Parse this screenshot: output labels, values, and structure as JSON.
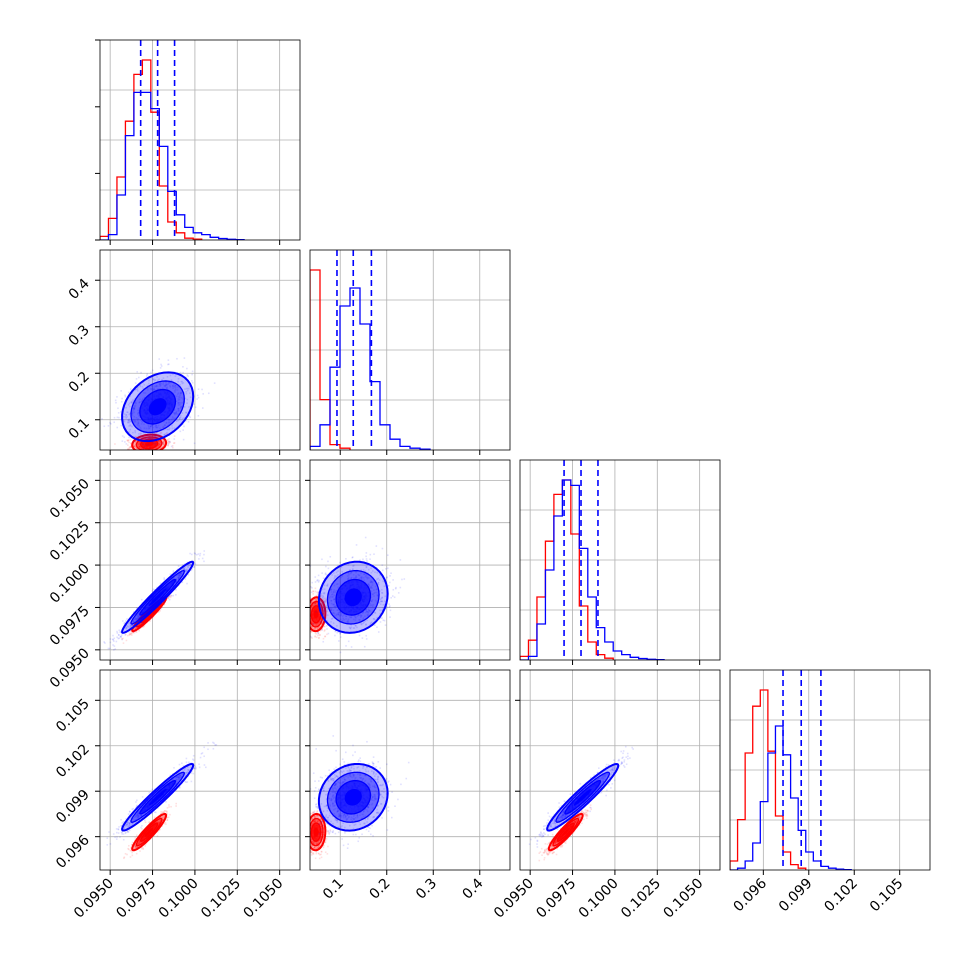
{
  "chart_data": {
    "type": "corner",
    "parameters": [
      {
        "ticks": [
          0.095,
          0.0975,
          0.1,
          0.1025,
          0.105
        ],
        "tick_labels": [
          "0.0950",
          "0.0975",
          "0.1000",
          "0.1025",
          "0.1050"
        ],
        "range": [
          0.0944,
          0.1062
        ]
      },
      {
        "ticks": [
          0.1,
          0.2,
          0.3,
          0.4
        ],
        "tick_labels": [
          "0.1",
          "0.2",
          "0.3",
          "0.4"
        ],
        "range": [
          0.035,
          0.465
        ]
      },
      {
        "ticks": [
          0.095,
          0.0975,
          0.1,
          0.1025,
          0.105
        ],
        "tick_labels": [
          "0.0950",
          "0.0975",
          "0.1000",
          "0.1025",
          "0.1050"
        ],
        "range": [
          0.0944,
          0.1062
        ]
      },
      {
        "ticks": [
          0.096,
          0.099,
          0.102,
          0.105
        ],
        "tick_labels": [
          "0.096",
          "0.099",
          "0.102",
          "0.105"
        ],
        "range": [
          0.0938,
          0.107
        ]
      }
    ],
    "series": [
      {
        "color": "#ff0000",
        "marginals": [
          {
            "edges_start": 0.0944,
            "bin_width": 0.0005,
            "counts": [
              0.02,
              0.12,
              0.35,
              0.66,
              0.92,
              1.0,
              0.71,
              0.3,
              0.1,
              0.04,
              0.01,
              0.005
            ]
          },
          {
            "edges_start": 0.035,
            "bin_width": 0.0215,
            "counts": [
              1.0,
              0.28,
              0.03,
              0.01
            ]
          },
          {
            "edges_start": 0.0944,
            "bin_width": 0.0005,
            "counts": [
              0.02,
              0.11,
              0.35,
              0.66,
              0.92,
              1.0,
              0.7,
              0.3,
              0.1,
              0.03,
              0.01
            ]
          },
          {
            "edges_start": 0.0938,
            "bin_width": 0.0005,
            "counts": [
              0.05,
              0.28,
              0.65,
              0.91,
              1.0,
              0.66,
              0.3,
              0.1,
              0.03,
              0.01
            ]
          }
        ],
        "means": [
          0.0973,
          0.048,
          0.0971,
          0.0963
        ],
        "sigmas": [
          0.0005,
          0.01,
          0.0005,
          0.0006
        ],
        "tilts": [
          [
            1,
            0,
            0,
            0
          ],
          [
            0.12,
            1,
            0,
            0
          ],
          [
            0.95,
            0.05,
            1,
            0
          ],
          [
            0.92,
            0.05,
            0.92,
            1
          ]
        ]
      },
      {
        "color": "#0000ff",
        "marginals": [
          {
            "edges_start": 0.0944,
            "bin_width": 0.0005,
            "counts": [
              0.0,
              0.03,
              0.25,
              0.58,
              0.82,
              0.82,
              0.73,
              0.52,
              0.27,
              0.14,
              0.07,
              0.04,
              0.03,
              0.015,
              0.008,
              0.004,
              0.002
            ]
          },
          {
            "edges_start": 0.035,
            "bin_width": 0.0215,
            "counts": [
              0.02,
              0.14,
              0.46,
              0.8,
              0.9,
              0.7,
              0.38,
              0.14,
              0.06,
              0.02,
              0.01,
              0.005
            ]
          },
          {
            "edges_start": 0.0944,
            "bin_width": 0.0005,
            "counts": [
              0.0,
              0.02,
              0.2,
              0.5,
              0.8,
              1.0,
              0.97,
              0.62,
              0.35,
              0.18,
              0.1,
              0.05,
              0.03,
              0.015,
              0.008,
              0.004,
              0.002
            ]
          },
          {
            "edges_start": 0.0938,
            "bin_width": 0.0005,
            "counts": [
              0.0,
              0.01,
              0.05,
              0.15,
              0.38,
              0.65,
              0.8,
              0.64,
              0.4,
              0.22,
              0.1,
              0.05,
              0.02,
              0.01,
              0.005,
              0.002
            ]
          }
        ],
        "means": [
          0.0978,
          0.128,
          0.0981,
          0.0986
        ],
        "sigmas": [
          0.00105,
          0.037,
          0.00105,
          0.0011
        ],
        "tilts": [
          [
            1,
            0,
            0,
            0
          ],
          [
            0.3,
            1,
            0,
            0
          ],
          [
            0.97,
            0.1,
            1,
            0
          ],
          [
            0.96,
            0.12,
            0.95,
            1
          ]
        ]
      }
    ],
    "quantile_lines": [
      [
        0.0968,
        0.0978,
        0.0988
      ],
      [
        0.093,
        0.128,
        0.167
      ],
      [
        0.097,
        0.098,
        0.099
      ],
      [
        0.0973,
        0.0985,
        0.0998
      ]
    ],
    "grid": true
  }
}
